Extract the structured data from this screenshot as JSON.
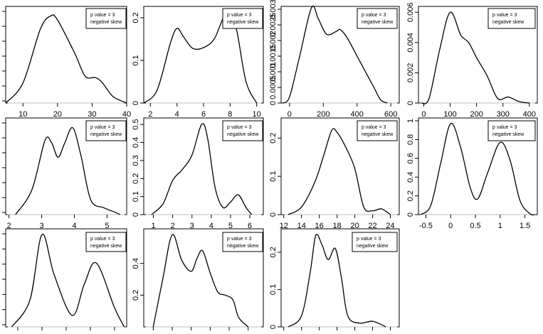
{
  "chart_data": [
    {
      "type": "line",
      "legend": [
        "p value = 3",
        "negative skew"
      ],
      "xlim": [
        5,
        40
      ],
      "ylim": [
        0,
        0.07
      ],
      "xticks": [
        10,
        20,
        30,
        40
      ],
      "yticks": [],
      "x": [
        5,
        10,
        15,
        18,
        20,
        25,
        28,
        31,
        33,
        36,
        40
      ],
      "y": [
        0,
        0.015,
        0.055,
        0.065,
        0.062,
        0.037,
        0.02,
        0.019,
        0.015,
        0.005,
        0
      ]
    },
    {
      "type": "line",
      "legend": [
        "p value = 3",
        "negative skew"
      ],
      "xlim": [
        1.5,
        10.5
      ],
      "ylim": [
        0,
        0.22
      ],
      "xticks": [
        2,
        4,
        6,
        8,
        10
      ],
      "yticks": [
        0,
        0.1,
        0.2
      ],
      "x": [
        1.5,
        2.5,
        3.5,
        4,
        4.5,
        5.2,
        6,
        6.8,
        7.5,
        8,
        8.5,
        9.2,
        10
      ],
      "y": [
        0,
        0.03,
        0.14,
        0.175,
        0.155,
        0.128,
        0.13,
        0.15,
        0.2,
        0.21,
        0.17,
        0.05,
        0
      ]
    },
    {
      "type": "line",
      "legend": [
        "p value = 3",
        "negative skew"
      ],
      "xlim": [
        -50,
        650
      ],
      "ylim": [
        0,
        0.003
      ],
      "xticks": [
        0,
        200,
        400,
        600
      ],
      "yticks": [
        0,
        0.0005,
        0.001,
        0.0015,
        0.002,
        0.0025,
        0.003
      ],
      "x": [
        -40,
        0,
        60,
        130,
        170,
        220,
        280,
        300,
        340,
        400,
        450,
        500,
        540,
        580
      ],
      "y": [
        0,
        0.0002,
        0.0015,
        0.00305,
        0.0027,
        0.0022,
        0.0023,
        0.00235,
        0.0021,
        0.0015,
        0.001,
        0.0005,
        0.0001,
        0
      ]
    },
    {
      "type": "line",
      "legend": [
        "p value = 3",
        "negative skew"
      ],
      "xlim": [
        -20,
        430
      ],
      "ylim": [
        0,
        0.0062
      ],
      "xticks": [
        0,
        100,
        200,
        300,
        400
      ],
      "yticks": [
        0,
        0.002,
        0.004,
        0.006
      ],
      "x": [
        -10,
        20,
        60,
        100,
        140,
        170,
        200,
        240,
        280,
        320,
        360,
        400
      ],
      "y": [
        0,
        0.0003,
        0.0035,
        0.006,
        0.0045,
        0.004,
        0.003,
        0.0018,
        0.0003,
        0.0004,
        0.0001,
        0
      ]
    },
    {
      "type": "line",
      "legend": [
        "p value = 3",
        "negative skew"
      ],
      "xlim": [
        1.9,
        5.6
      ],
      "ylim": [
        0,
        0.95
      ],
      "xticks": [
        2,
        3,
        4,
        5
      ],
      "yticks": [],
      "x": [
        2.2,
        2.7,
        3.1,
        3.3,
        3.5,
        3.7,
        3.95,
        4.2,
        4.5,
        4.9,
        5.2,
        5.4
      ],
      "y": [
        0,
        0.25,
        0.75,
        0.73,
        0.58,
        0.72,
        0.88,
        0.6,
        0.15,
        0.07,
        0.03,
        0
      ]
    },
    {
      "type": "line",
      "legend": [
        "p value = 3",
        "negative skew"
      ],
      "xlim": [
        0.5,
        6.7
      ],
      "ylim": [
        0,
        0.52
      ],
      "xticks": [
        1,
        2,
        3,
        4,
        5,
        6
      ],
      "yticks": [
        0,
        0.1,
        0.2,
        0.3,
        0.4,
        0.5
      ],
      "x": [
        0.9,
        1.5,
        2,
        2.5,
        3,
        3.5,
        3.8,
        4.2,
        4.6,
        5,
        5.4,
        5.8,
        6.1
      ],
      "y": [
        0,
        0.06,
        0.19,
        0.25,
        0.33,
        0.5,
        0.43,
        0.15,
        0.04,
        0.07,
        0.11,
        0.04,
        0
      ]
    },
    {
      "type": "line",
      "legend": [
        "p value = 3",
        "negative skew"
      ],
      "xlim": [
        11.7,
        25
      ],
      "ylim": [
        0,
        0.245
      ],
      "xticks": [
        12,
        14,
        16,
        18,
        20,
        22,
        24
      ],
      "yticks": [
        0,
        0.1,
        0.2
      ],
      "x": [
        12.5,
        14,
        15.5,
        16.5,
        17.4,
        18,
        19,
        20,
        21,
        22,
        23,
        24
      ],
      "y": [
        0,
        0.02,
        0.085,
        0.155,
        0.22,
        0.215,
        0.175,
        0.12,
        0.02,
        0.01,
        0.015,
        0
      ]
    },
    {
      "type": "line",
      "legend": [
        "p value = 3",
        "negative skew"
      ],
      "xlim": [
        -0.65,
        1.75
      ],
      "ylim": [
        0,
        1.0
      ],
      "xticks": [
        -0.5,
        0,
        0.5,
        1,
        1.5
      ],
      "yticks": [
        0,
        0.2,
        0.4,
        0.6,
        0.8,
        1.0
      ],
      "x": [
        -0.6,
        -0.4,
        -0.2,
        0,
        0.2,
        0.4,
        0.55,
        0.75,
        1,
        1.2,
        1.4,
        1.6,
        1.7
      ],
      "y": [
        0,
        0.1,
        0.55,
        0.97,
        0.72,
        0.28,
        0.17,
        0.45,
        0.77,
        0.58,
        0.15,
        0.01,
        0
      ]
    },
    {
      "type": "line",
      "legend": [
        "p value = 3",
        "negative skew"
      ],
      "xlim": [
        0,
        10
      ],
      "ylim": [
        0,
        1.0
      ],
      "xticks": [],
      "yticks": [],
      "x": [
        0.5,
        2,
        3,
        4,
        5.5,
        6.5,
        7.5,
        9,
        9.8
      ],
      "y": [
        0,
        0.28,
        0.97,
        0.55,
        0.12,
        0.45,
        0.67,
        0.2,
        0
      ],
      "x_tick_marks": [
        1,
        3,
        5,
        7,
        9
      ]
    },
    {
      "type": "line",
      "legend": [
        "p value = 3",
        "negative skew"
      ],
      "xlim": [
        0.5,
        6.8
      ],
      "ylim": [
        0,
        0.6
      ],
      "xticks": [],
      "yticks": [
        0.2,
        0.4
      ],
      "x": [
        1,
        1.5,
        2,
        2.5,
        3,
        3.3,
        3.6,
        4,
        4.4,
        4.8,
        5.2,
        5.5,
        6
      ],
      "y": [
        0,
        0.3,
        0.58,
        0.42,
        0.35,
        0.43,
        0.48,
        0.34,
        0.22,
        0.2,
        0.17,
        0.06,
        0
      ],
      "x_tick_marks": [
        1,
        2,
        3,
        4,
        5,
        6
      ]
    },
    {
      "type": "line",
      "legend": [
        "p value = 3",
        "negative skew"
      ],
      "xlim": [
        11.7,
        25
      ],
      "ylim": [
        0,
        0.255
      ],
      "xticks": [],
      "yticks": [
        0,
        0.1,
        0.2
      ],
      "x": [
        12.5,
        14,
        15,
        15.6,
        16.3,
        17,
        17.8,
        18.5,
        19.2,
        20.5,
        22,
        23.5
      ],
      "y": [
        0,
        0.03,
        0.15,
        0.245,
        0.22,
        0.18,
        0.21,
        0.13,
        0.03,
        0.01,
        0.015,
        0
      ],
      "x_tick_marks": [
        12,
        14,
        16,
        18,
        20,
        22,
        24
      ]
    }
  ]
}
